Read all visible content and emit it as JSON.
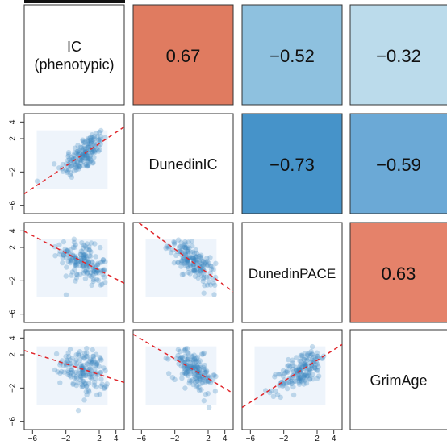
{
  "chart_data": {
    "type": "scatter",
    "layout": "pairs-matrix",
    "variables": [
      {
        "id": "ic",
        "label_lines": [
          "IC",
          "(phenotypic)"
        ]
      },
      {
        "id": "dunedinic",
        "label_lines": [
          "DunedinIC"
        ]
      },
      {
        "id": "dunedinpace",
        "label_lines": [
          "DunedinPACE"
        ]
      },
      {
        "id": "grimage",
        "label_lines": [
          "GrimAge"
        ]
      }
    ],
    "correlations": [
      {
        "row": 0,
        "col": 1,
        "value": 0.67,
        "label": "0.67",
        "color": "#e07b60"
      },
      {
        "row": 0,
        "col": 2,
        "value": -0.52,
        "label": "−0.52",
        "color": "#8ec1df"
      },
      {
        "row": 0,
        "col": 3,
        "value": -0.32,
        "label": "−0.32",
        "color": "#bbdbeb"
      },
      {
        "row": 1,
        "col": 2,
        "value": -0.73,
        "label": "−0.73",
        "color": "#4693c9"
      },
      {
        "row": 1,
        "col": 3,
        "value": -0.59,
        "label": "−0.59",
        "color": "#6ba9d6"
      },
      {
        "row": 2,
        "col": 3,
        "value": 0.63,
        "label": "0.63",
        "color": "#e5826a"
      }
    ],
    "scatter_panels": [
      {
        "row": 1,
        "col": 0,
        "r": 0.67
      },
      {
        "row": 2,
        "col": 0,
        "r": -0.52
      },
      {
        "row": 2,
        "col": 1,
        "r": -0.73
      },
      {
        "row": 3,
        "col": 0,
        "r": -0.32
      },
      {
        "row": 3,
        "col": 1,
        "r": -0.59
      },
      {
        "row": 3,
        "col": 2,
        "r": 0.63
      }
    ],
    "axis_range": [
      -7,
      5
    ],
    "x_ticks": [
      -6,
      -2,
      2,
      4
    ],
    "x_tick_labels": [
      "−6",
      "−2",
      "2",
      "4"
    ],
    "y_ticks": [
      4,
      2,
      -2,
      -6
    ],
    "y_tick_labels": [
      "4",
      "2",
      "−2",
      "−6"
    ],
    "point_color": "#3a85c0",
    "fit_line_color": "#e0262b",
    "grid": false,
    "legend": "none"
  }
}
